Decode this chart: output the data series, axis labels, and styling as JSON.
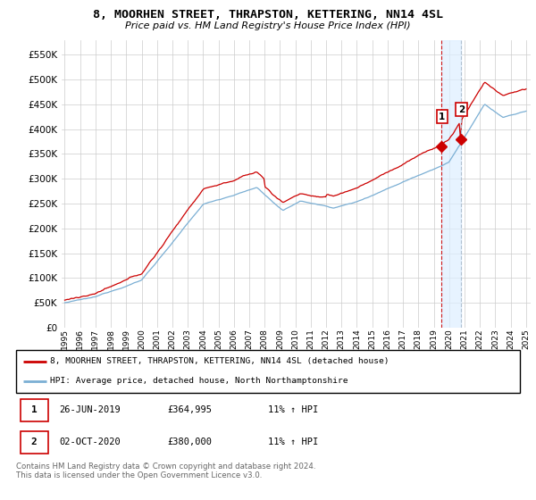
{
  "title": "8, MOORHEN STREET, THRAPSTON, KETTERING, NN14 4SL",
  "subtitle": "Price paid vs. HM Land Registry's House Price Index (HPI)",
  "ytick_values": [
    0,
    50000,
    100000,
    150000,
    200000,
    250000,
    300000,
    350000,
    400000,
    450000,
    500000,
    550000
  ],
  "ylim": [
    0,
    580000
  ],
  "xlim_start": 1994.8,
  "xlim_end": 2025.3,
  "red_line_color": "#cc0000",
  "blue_line_color": "#7bafd4",
  "sale1_x": 2019.49,
  "sale1_y": 364995,
  "sale2_x": 2020.75,
  "sale2_y": 380000,
  "legend_line1": "8, MOORHEN STREET, THRAPSTON, KETTERING, NN14 4SL (detached house)",
  "legend_line2": "HPI: Average price, detached house, North Northamptonshire",
  "table_row1": [
    "1",
    "26-JUN-2019",
    "£364,995",
    "11% ↑ HPI"
  ],
  "table_row2": [
    "2",
    "02-OCT-2020",
    "£380,000",
    "11% ↑ HPI"
  ],
  "footnote": "Contains HM Land Registry data © Crown copyright and database right 2024.\nThis data is licensed under the Open Government Licence v3.0.",
  "bg_color": "#ffffff",
  "grid_color": "#cccccc",
  "shade_color": "#ddeeff"
}
